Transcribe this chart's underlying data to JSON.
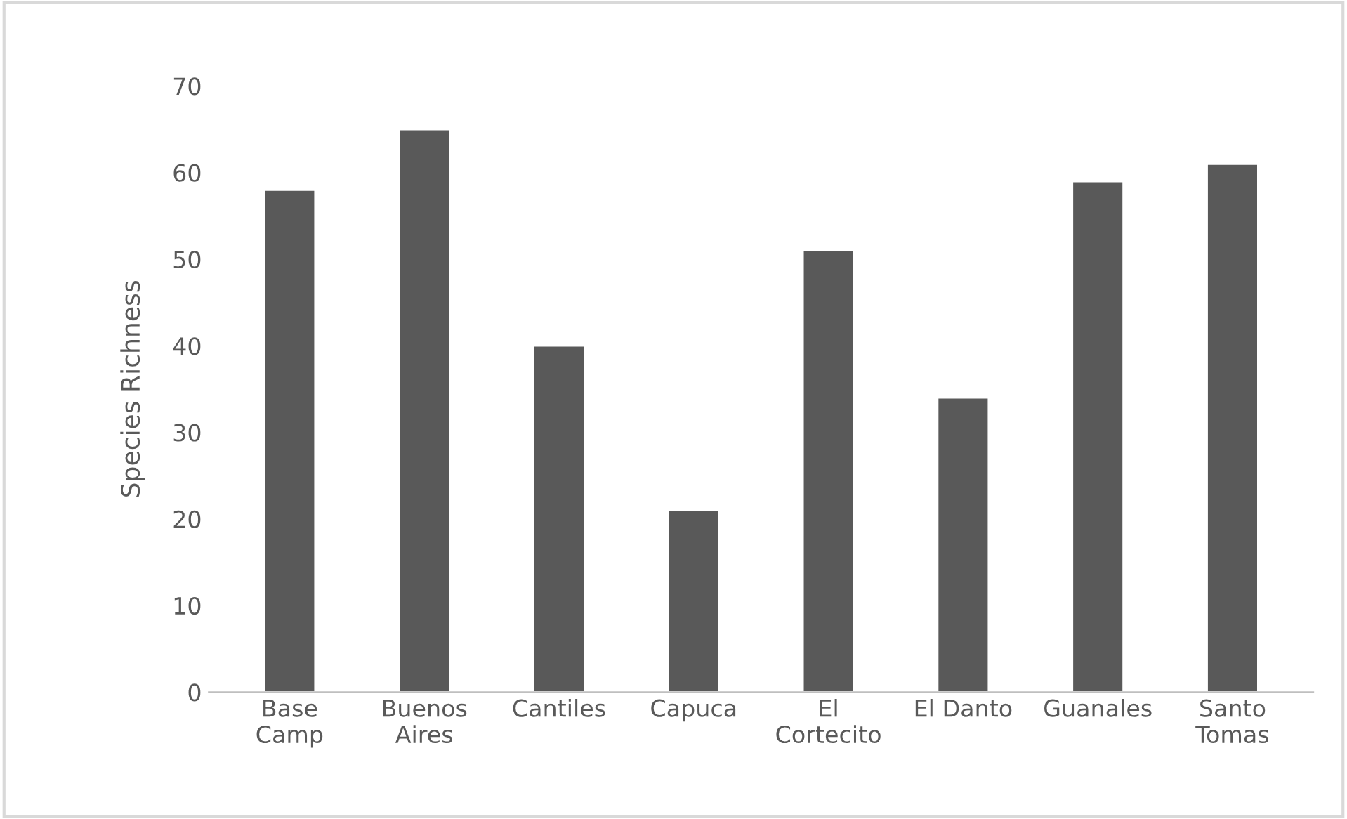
{
  "chart_data": {
    "type": "bar",
    "ylabel": "Species Richness",
    "categories": [
      "Base\nCamp",
      "Buenos\nAires",
      "Cantiles",
      "Capuca",
      "El\nCortecito",
      "El Danto",
      "Guanales",
      "Santo\nTomas"
    ],
    "values": [
      58,
      65,
      40,
      21,
      51,
      34,
      59,
      61
    ],
    "color": "#595959",
    "ylim": [
      0,
      70
    ],
    "yticks": [
      0,
      10,
      20,
      30,
      40,
      50,
      60,
      70
    ],
    "grid": false,
    "legend": false
  }
}
